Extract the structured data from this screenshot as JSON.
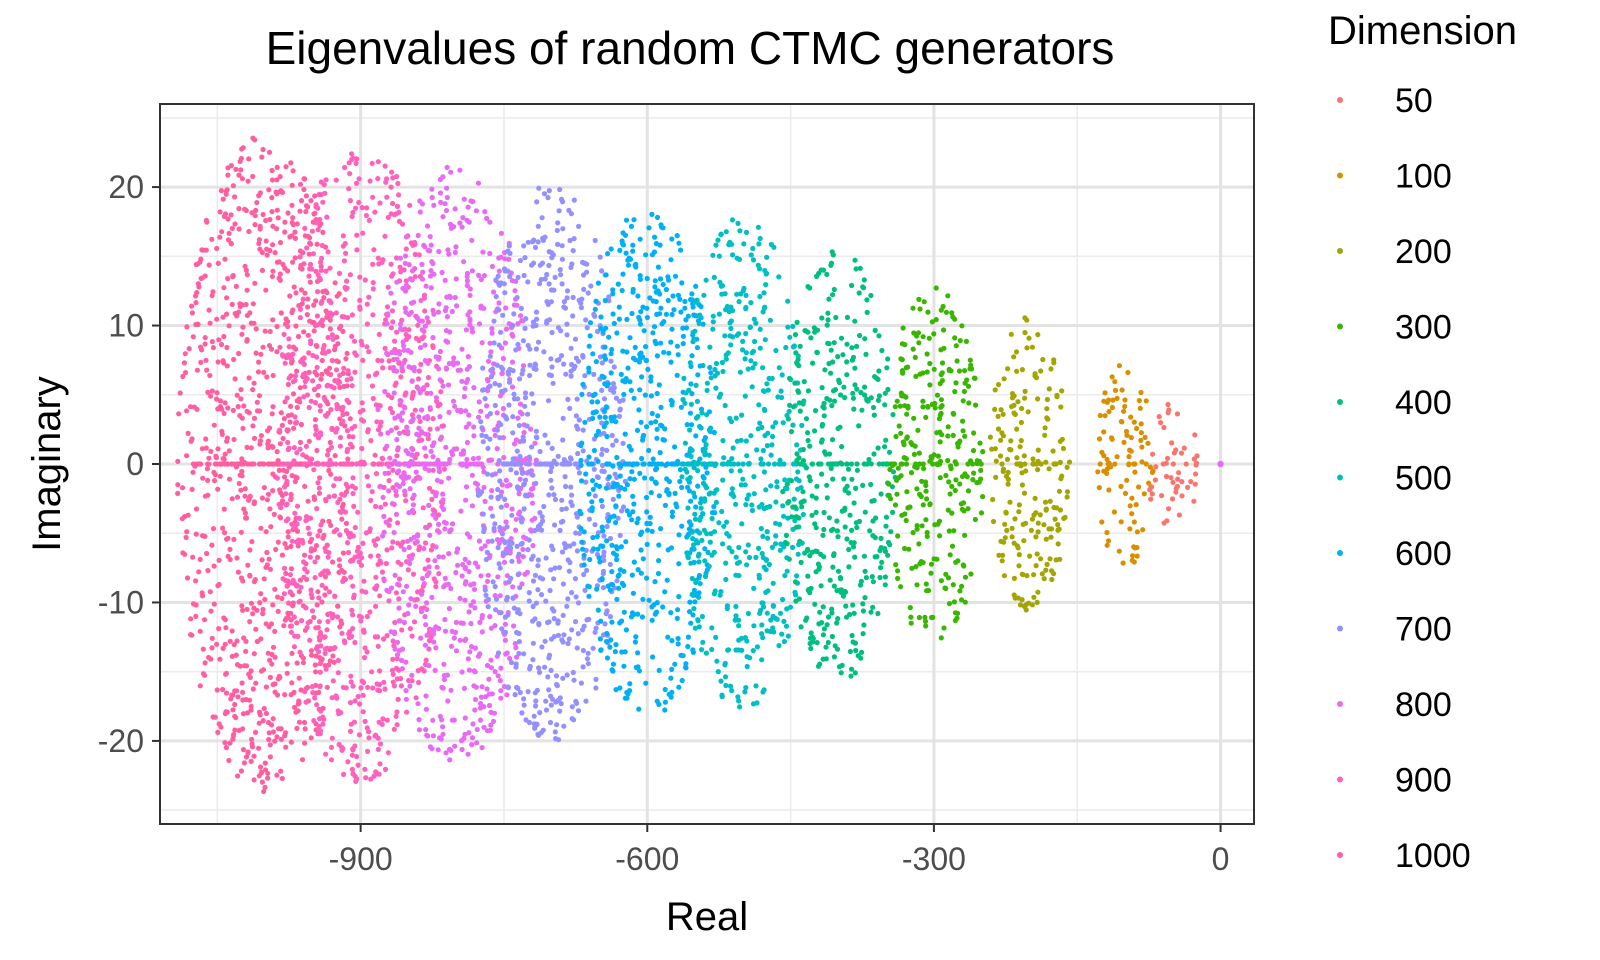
{
  "chart_data": {
    "type": "scatter",
    "title": "Eigenvalues of random CTMC generators",
    "xlabel": "Real",
    "ylabel": "Imaginary",
    "xlim": [
      -1110,
      35
    ],
    "ylim": [
      -26,
      26
    ],
    "x_ticks": [
      -900,
      -600,
      -300,
      0
    ],
    "y_ticks": [
      -20,
      -10,
      0,
      10,
      20
    ],
    "x_minor_ticks": [
      -1050,
      -750,
      -450,
      -150
    ],
    "y_minor_ticks": [
      -25,
      -15,
      -5,
      5,
      15,
      25
    ],
    "grid": true,
    "legend": {
      "title": "Dimension",
      "position": "right"
    },
    "series": [
      {
        "name": "50",
        "color": "#F8766D",
        "center": -50,
        "real_halfwidth": 30,
        "imag_max": 4.5,
        "count": 50
      },
      {
        "name": "100",
        "color": "#D89000",
        "center": -100,
        "real_halfwidth": 30,
        "imag_max": 7.5,
        "count": 100
      },
      {
        "name": "200",
        "color": "#A3A500",
        "center": -200,
        "real_halfwidth": 42,
        "imag_max": 10.7,
        "count": 200
      },
      {
        "name": "300",
        "color": "#39B600",
        "center": -300,
        "real_halfwidth": 52,
        "imag_max": 13,
        "count": 300
      },
      {
        "name": "400",
        "color": "#00BF7D",
        "center": -400,
        "real_halfwidth": 60,
        "imag_max": 15.8,
        "count": 400
      },
      {
        "name": "500",
        "color": "#00BFC4",
        "center": -500,
        "real_halfwidth": 66,
        "imag_max": 18,
        "count": 500
      },
      {
        "name": "600",
        "color": "#00B0F6",
        "center": -600,
        "real_halfwidth": 72,
        "imag_max": 18.6,
        "count": 600
      },
      {
        "name": "700",
        "color": "#9590FF",
        "center": -700,
        "real_halfwidth": 78,
        "imag_max": 20.3,
        "count": 700
      },
      {
        "name": "800",
        "color": "#E76BF3",
        "center": -800,
        "real_halfwidth": 84,
        "imag_max": 21.7,
        "count": 800
      },
      {
        "name": "900",
        "color": "#FF62BC",
        "center": -900,
        "real_halfwidth": 88,
        "imag_max": 23.1,
        "count": 900
      },
      {
        "name": "1000",
        "color": "#FF5FA0",
        "center": -1000,
        "real_halfwidth": 92,
        "imag_max": 23.8,
        "count": 1000
      }
    ],
    "special_points": [
      {
        "x": 0,
        "y": 0,
        "note": "zero eigenvalue"
      }
    ]
  }
}
